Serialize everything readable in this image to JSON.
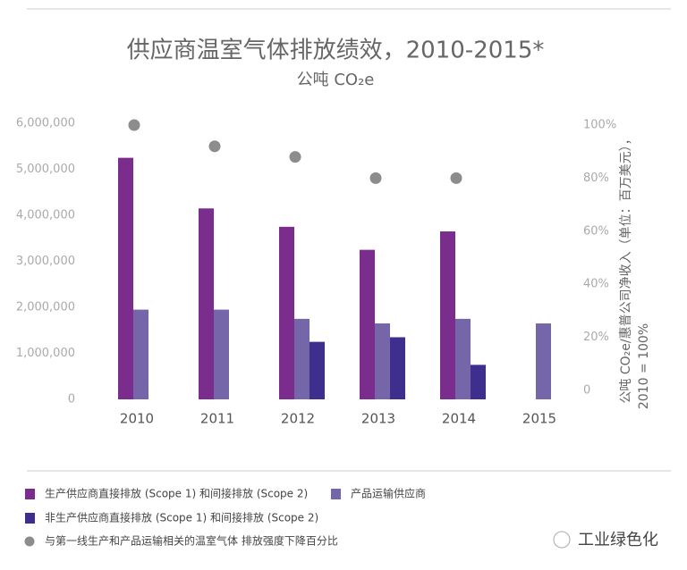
{
  "chart_data": {
    "type": "bar",
    "title": "供应商温室气体排放绩效，2010-2015*",
    "subtitle": "公吨 CO₂e",
    "y2label": [
      "公吨 CO₂e/惠普公司净收入（单位：百万美元），",
      "2010 = 100%"
    ],
    "categories": [
      "2010",
      "2011",
      "2012",
      "2013",
      "2014",
      "2015"
    ],
    "series": [
      {
        "name": "生产供应商直接排放 (Scope 1) 和间接排放 (Scope 2)",
        "color": "#7b2d8e",
        "values": [
          5250000,
          4150000,
          3750000,
          3250000,
          3650000,
          null
        ]
      },
      {
        "name": "产品运输供应商",
        "color": "#7565a9",
        "values": [
          1950000,
          1950000,
          1750000,
          1650000,
          1750000,
          1650000
        ]
      },
      {
        "name": "非生产供应商直接排放 (Scope 1) 和间接排放 (Scope 2)",
        "color": "#3e2f8f",
        "values": [
          null,
          null,
          1250000,
          1350000,
          750000,
          null
        ]
      },
      {
        "name": "与第一线生产和产品运输相关的温室气体 排放强度下降百分比",
        "color": "#8c8c8c",
        "axis": "y2",
        "marker": "circle",
        "values": [
          100,
          92,
          88,
          80,
          80,
          null
        ]
      }
    ],
    "ylim": [
      0,
      6000000
    ],
    "yticks": [
      0,
      {
        "value": 1000000,
        "label": "1,000,000"
      },
      {
        "value": 2000000,
        "label": "2,000,000"
      },
      {
        "value": 3000000,
        "label": "3,000,000"
      },
      {
        "value": 4000000,
        "label": "4,000,000"
      },
      {
        "value": 5000000,
        "label": "5,000,000"
      },
      {
        "value": 6000000,
        "label": "6,000,000"
      }
    ],
    "y2lim": [
      0,
      100
    ],
    "y2ticks": [
      0,
      {
        "value": 20,
        "label": "20%"
      },
      {
        "value": 40,
        "label": "40%"
      },
      {
        "value": 60,
        "label": "60%"
      },
      {
        "value": 80,
        "label": "80%"
      },
      {
        "value": 100,
        "label": "100%"
      }
    ],
    "watermark": "工业绿色化"
  }
}
